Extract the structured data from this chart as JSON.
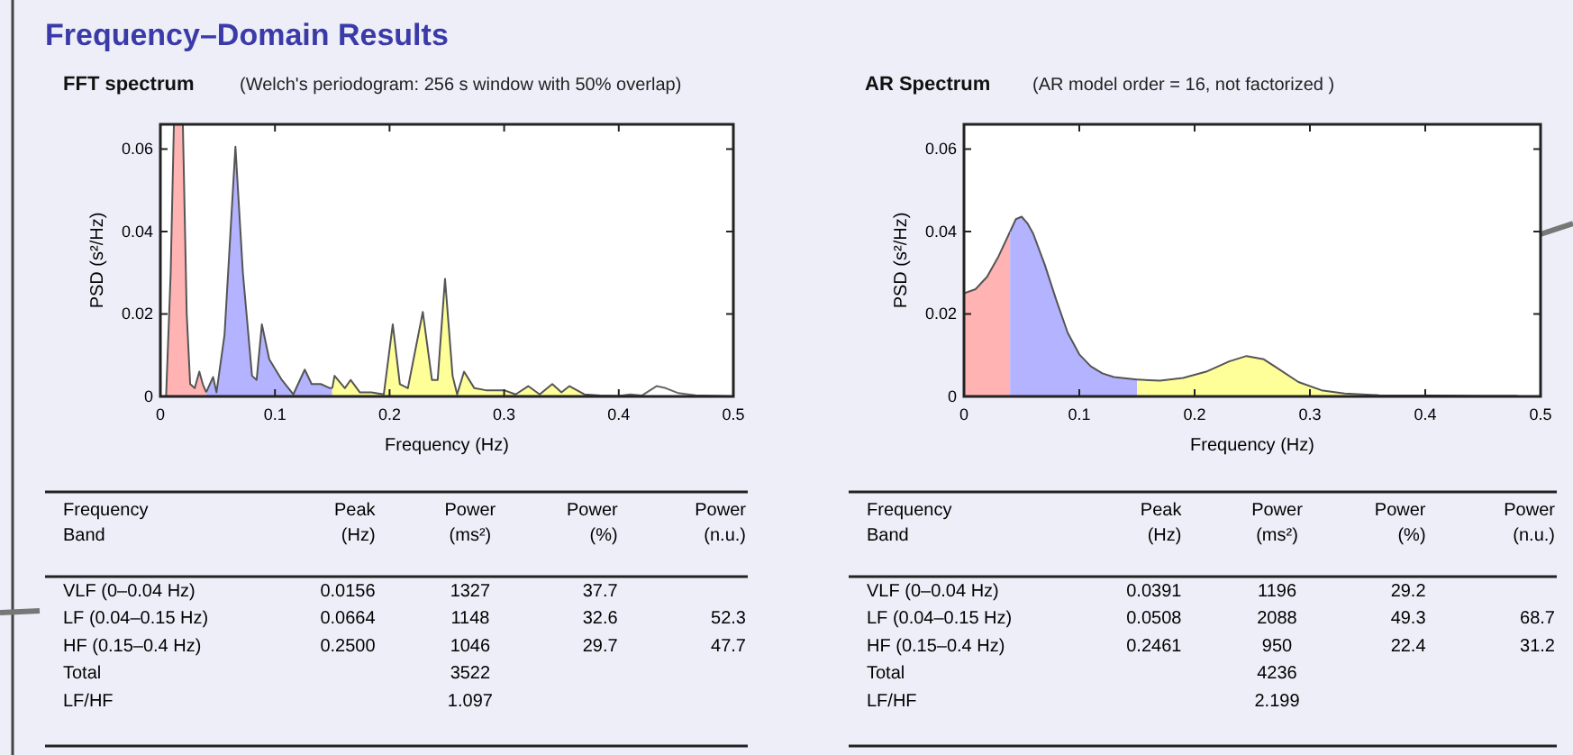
{
  "chart_data": [
    {
      "type": "area",
      "title": "FFT spectrum",
      "subtitle": "(Welch's periodogram: 256 s window with 50% overlap)",
      "annotations": [
        "Frequency–Domain Results"
      ],
      "xlabel": "Frequency (Hz)",
      "ylabel": "PSD (s²/Hz)",
      "xlim": [
        0,
        0.5
      ],
      "xticks": [
        0,
        0.1,
        0.2,
        0.3,
        0.4,
        0.5
      ],
      "ylim": [
        0,
        0.066
      ],
      "yticks": [
        0,
        0.02,
        0.04,
        0.06
      ],
      "series": [
        {
          "type": "area",
          "color": "#ffb3b3",
          "x": [
            0,
            0.005,
            0.009,
            0.0125,
            0.0156,
            0.019,
            0.023,
            0.026,
            0.03,
            0.034,
            0.037,
            0.04
          ],
          "values": [
            0,
            0,
            0.03,
            null,
            null,
            null,
            0.02,
            0.003,
            0.002,
            0.006,
            0.003,
            0.001
          ]
        },
        {
          "type": "area",
          "color": "#b3b3ff",
          "x": [
            0.04,
            0.046,
            0.049,
            0.056,
            0.0655,
            0.072,
            0.08,
            0.084,
            0.0886,
            0.095,
            0.106,
            0.116,
            0.126,
            0.132,
            0.14,
            0.148,
            0.15
          ],
          "values": [
            0.001,
            0.0047,
            0.001,
            0.015,
            0.0606,
            0.03,
            0.005,
            0.004,
            0.0175,
            0.009,
            0.004,
            0.0005,
            0.0065,
            0.003,
            0.003,
            0.002,
            0.002
          ]
        },
        {
          "type": "area",
          "color": "#ffff99",
          "x": [
            0.15,
            0.152,
            0.161,
            0.166,
            0.174,
            0.184,
            0.195,
            0.2028,
            0.209,
            0.216,
            0.229,
            0.237,
            0.242,
            0.2484,
            0.255,
            0.259,
            0.265,
            0.274,
            0.284,
            0.3,
            0.31,
            0.321,
            0.331,
            0.342,
            0.35,
            0.357,
            0.37,
            0.384,
            0.4
          ],
          "values": [
            0.002,
            0.005,
            0.002,
            0.004,
            0.001,
            0.001,
            0.0005,
            0.0175,
            0.003,
            0.002,
            0.0205,
            0.004,
            0.004,
            0.0285,
            0.005,
            0.0005,
            0.006,
            0.002,
            0.0015,
            0.0015,
            0.0005,
            0.0025,
            0.0005,
            0.003,
            0.001,
            0.0025,
            0.0005,
            0.0002,
            0.0001
          ]
        },
        {
          "type": "line",
          "color": "#666666",
          "x": [
            0.4,
            0.41,
            0.42,
            0.433,
            0.441,
            0.452,
            0.467,
            0.5
          ],
          "values": [
            0.0001,
            0.0005,
            0.0002,
            0.0025,
            0.002,
            0.0008,
            0.0003,
            0
          ]
        }
      ]
    },
    {
      "type": "area",
      "title": "AR Spectrum",
      "subtitle": "(AR model order = 16, not factorized )",
      "xlabel": "Frequency (Hz)",
      "ylabel": "PSD (s²/Hz)",
      "xlim": [
        0,
        0.5
      ],
      "xticks": [
        0,
        0.1,
        0.2,
        0.3,
        0.4,
        0.5
      ],
      "ylim": [
        0,
        0.066
      ],
      "yticks": [
        0,
        0.02,
        0.04,
        0.06
      ],
      "series": [
        {
          "type": "area",
          "color": "#ffb3b3",
          "x": [
            0,
            0.01,
            0.02,
            0.03,
            0.04
          ],
          "values": [
            0.025,
            0.026,
            0.029,
            0.034,
            0.04
          ]
        },
        {
          "type": "area",
          "color": "#b3b3ff",
          "x": [
            0.04,
            0.045,
            0.05,
            0.055,
            0.06,
            0.07,
            0.08,
            0.09,
            0.1,
            0.11,
            0.12,
            0.13,
            0.15
          ],
          "values": [
            0.04,
            0.043,
            0.0436,
            0.042,
            0.0395,
            0.032,
            0.0234,
            0.0154,
            0.0102,
            0.0073,
            0.0056,
            0.0047,
            0.0041
          ]
        },
        {
          "type": "area",
          "color": "#ffff99",
          "x": [
            0.15,
            0.17,
            0.19,
            0.21,
            0.23,
            0.245,
            0.26,
            0.27,
            0.29,
            0.31,
            0.33,
            0.36,
            0.4
          ],
          "values": [
            0.0041,
            0.0038,
            0.0045,
            0.006,
            0.0085,
            0.0098,
            0.009,
            0.0072,
            0.0035,
            0.0015,
            0.0007,
            0.0003,
            0.0002
          ]
        },
        {
          "type": "line",
          "color": "#333333",
          "x": [
            0.4,
            0.45,
            0.48
          ],
          "values": [
            0.0002,
            0.0001,
            0.0001
          ]
        }
      ]
    },
    {
      "type": "other",
      "categories": [
        "Frequency\nBand",
        "Peak\n(Hz)",
        "Power\n(ms²)",
        "Power\n(%)",
        "Power\n(n.u.)"
      ],
      "y_categories": [
        "VLF (0–0.04 Hz)",
        "LF (0.04–0.15 Hz)",
        "HF (0.15–0.4 Hz)",
        "Total",
        "LF/HF"
      ],
      "cell_labels": [
        [
          "0.0156",
          "1327",
          "37.7",
          null
        ],
        [
          "0.0664",
          "1148",
          "32.6",
          "52.3"
        ],
        [
          "0.2500",
          "1046",
          "29.7",
          "47.7"
        ],
        [
          null,
          "3522",
          null,
          null
        ],
        [
          null,
          "1.097",
          null,
          null
        ]
      ]
    },
    {
      "type": "other",
      "categories": [
        "Frequency\nBand",
        "Peak\n(Hz)",
        "Power\n(ms²)",
        "Power\n(%)",
        "Power\n(n.u.)"
      ],
      "y_categories": [
        "VLF (0–0.04 Hz)",
        "LF (0.04–0.15 Hz)",
        "HF (0.15–0.4 Hz)",
        "Total",
        "LF/HF"
      ],
      "cell_labels": [
        [
          "0.0391",
          "1196",
          "29.2",
          null
        ],
        [
          "0.0508",
          "2088",
          "49.3",
          "68.7"
        ],
        [
          "0.2461",
          "950",
          "22.4",
          "31.2"
        ],
        [
          null,
          "4236",
          null,
          null
        ],
        [
          null,
          "2.199",
          null,
          null
        ]
      ]
    }
  ]
}
